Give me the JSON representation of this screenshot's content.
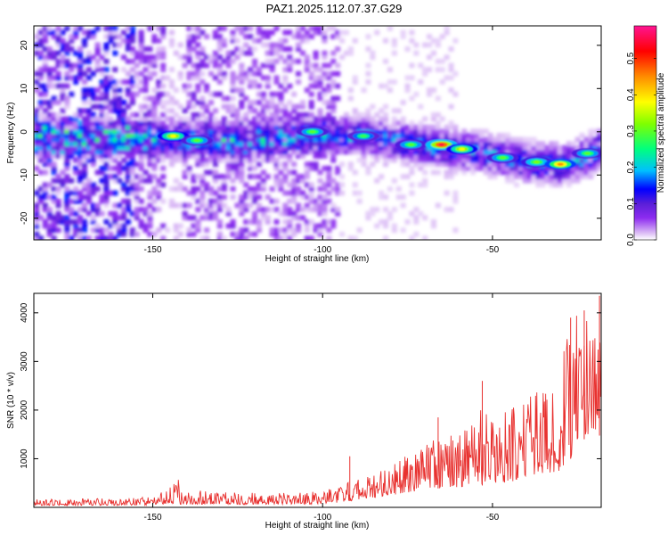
{
  "title": "PAZ1.2025.112.07.37.G29",
  "chart_data": [
    {
      "type": "heatmap",
      "xlabel": "Height of straight line (km)",
      "ylabel": "Frequency (Hz)",
      "xlim": [
        -185,
        -18
      ],
      "ylim": [
        -25,
        24.5
      ],
      "xticks": [
        -150,
        -100,
        -50
      ],
      "yticks": [
        -20,
        -10,
        0,
        10,
        20
      ],
      "colorbar": {
        "label": "Normalized spectral amplitude",
        "range": [
          0,
          0.59
        ],
        "ticks": [
          0.0,
          0.1,
          0.2,
          0.3,
          0.4,
          0.5
        ],
        "colors": [
          "#ffffff",
          "#d9b8f5",
          "#8d2cf0",
          "#5a1fd8",
          "#0000ff",
          "#00bfff",
          "#00ff7f",
          "#7fff00",
          "#ffff00",
          "#ff8c00",
          "#ff0000",
          "#ff1493"
        ]
      },
      "ridge": {
        "x": [
          -185,
          -160,
          -145,
          -130,
          -115,
          -100,
          -85,
          -70,
          -60,
          -50,
          -40,
          -30,
          -20,
          -18
        ],
        "y": [
          -1,
          -1.5,
          -1.5,
          -2,
          -1.5,
          -0.5,
          -1,
          -3,
          -4,
          -5,
          -7,
          -7.5,
          -5,
          -3
        ]
      },
      "peaks": [
        {
          "x": -144,
          "y": -1,
          "value": 0.38
        },
        {
          "x": -137,
          "y": -2,
          "value": 0.3
        },
        {
          "x": -103,
          "y": 0,
          "value": 0.3
        },
        {
          "x": -88,
          "y": -1,
          "value": 0.28
        },
        {
          "x": -74,
          "y": -3,
          "value": 0.3
        },
        {
          "x": -65,
          "y": -3,
          "value": 0.55
        },
        {
          "x": -59,
          "y": -4,
          "value": 0.38
        },
        {
          "x": -47,
          "y": -6,
          "value": 0.3
        },
        {
          "x": -37,
          "y": -7,
          "value": 0.32
        },
        {
          "x": -30,
          "y": -7.5,
          "value": 0.45
        },
        {
          "x": -22,
          "y": -5,
          "value": 0.3
        }
      ]
    },
    {
      "type": "line",
      "xlabel": "Height of straight line (km)",
      "ylabel": "SNR (10 * v/v)",
      "xlim": [
        -185,
        -18
      ],
      "ylim": [
        0,
        4400
      ],
      "xticks": [
        -150,
        -100,
        -50
      ],
      "yticks": [
        1000,
        2000,
        3000,
        4000
      ],
      "color": "#e8312f",
      "envelope": {
        "x": [
          -185,
          -160,
          -150,
          -145,
          -142,
          -138,
          -125,
          -110,
          -100,
          -95,
          -85,
          -80,
          -75,
          -70,
          -65,
          -60,
          -55,
          -52,
          -50,
          -45,
          -40,
          -35,
          -30,
          -28,
          -25,
          -22,
          -20,
          -18
        ],
        "low": [
          40,
          40,
          50,
          80,
          60,
          60,
          60,
          60,
          70,
          100,
          200,
          250,
          300,
          350,
          400,
          420,
          450,
          450,
          500,
          500,
          600,
          700,
          700,
          900,
          1200,
          1500,
          1400,
          1500
        ],
        "high": [
          180,
          180,
          220,
          400,
          600,
          350,
          300,
          300,
          330,
          450,
          700,
          900,
          1100,
          1300,
          1500,
          1650,
          1800,
          2200,
          1900,
          2000,
          2300,
          2500,
          2700,
          3800,
          4000,
          4050,
          3700,
          4400
        ]
      },
      "spikes": [
        {
          "x": -92,
          "y": 1050
        },
        {
          "x": -66,
          "y": 1850
        },
        {
          "x": -53,
          "y": 2600
        },
        {
          "x": -27,
          "y": 3900
        },
        {
          "x": -23,
          "y": 4050
        },
        {
          "x": -18.5,
          "y": 4350
        }
      ]
    }
  ]
}
